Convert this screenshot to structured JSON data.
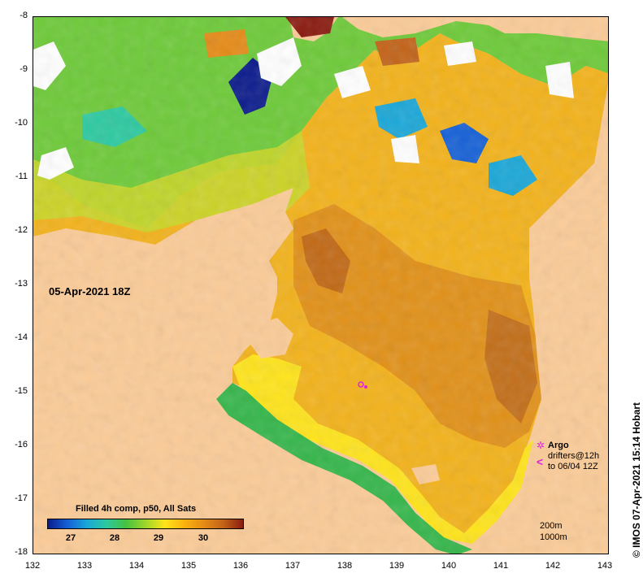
{
  "map": {
    "lat_labels": [
      "-8",
      "-9",
      "-10",
      "-11",
      "-12",
      "-13",
      "-14",
      "-15",
      "-16",
      "-17",
      "-18"
    ],
    "lon_labels": [
      "132",
      "133",
      "134",
      "135",
      "136",
      "137",
      "138",
      "139",
      "140",
      "141",
      "142",
      "143"
    ],
    "date_stamp": "05-Apr-2021 18Z",
    "land_color": "#fbcb97",
    "missing_color": "#ffffff",
    "sst_colors": [
      "#0b1b8c",
      "#1560d6",
      "#1aa7d8",
      "#2cc9a0",
      "#46c240",
      "#9ed62b",
      "#ffe41a",
      "#f9b20e",
      "#e58a16",
      "#c26218",
      "#8a1a0f"
    ]
  },
  "colorbar": {
    "title": "Filled 4h comp, p50, All Sats",
    "ticks": [
      "27",
      "28",
      "29",
      "30"
    ]
  },
  "legend": {
    "argo_symbol": "✲",
    "argo_label": "Argo",
    "drifter_symbol": "<",
    "drifter_label_1": "drifters@12h",
    "drifter_label_2": "to 06/04 12Z",
    "depth_1": "200m",
    "depth_2": "1000m"
  },
  "credit": "© IMOS 07-Apr-2021 15:14 Hobart"
}
